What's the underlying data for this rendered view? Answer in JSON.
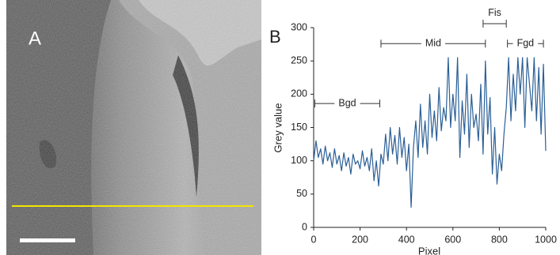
{
  "panel_a": {
    "label": "A"
  },
  "chart_data": {
    "type": "line",
    "panel_label": "B",
    "xlabel": "Pixel",
    "ylabel": "Grey value",
    "color": "#2b5f96",
    "x": [
      0,
      10,
      20,
      30,
      40,
      50,
      60,
      70,
      80,
      90,
      100,
      110,
      120,
      130,
      140,
      150,
      160,
      170,
      180,
      190,
      200,
      210,
      220,
      230,
      240,
      250,
      260,
      270,
      280,
      290,
      300,
      310,
      320,
      330,
      340,
      350,
      360,
      370,
      380,
      390,
      400,
      410,
      420,
      430,
      440,
      450,
      460,
      470,
      480,
      490,
      500,
      510,
      520,
      530,
      540,
      550,
      560,
      570,
      580,
      590,
      600,
      610,
      620,
      630,
      640,
      650,
      660,
      670,
      680,
      690,
      700,
      710,
      720,
      730,
      740,
      750,
      760,
      770,
      780,
      790,
      800,
      810,
      820,
      830,
      840,
      850,
      860,
      870,
      880,
      890,
      900,
      910,
      920,
      930,
      940,
      950,
      960,
      970,
      980,
      990,
      1000
    ],
    "values": [
      100,
      130,
      105,
      118,
      95,
      122,
      100,
      112,
      90,
      118,
      95,
      108,
      85,
      112,
      92,
      105,
      80,
      110,
      95,
      100,
      88,
      115,
      92,
      105,
      85,
      118,
      70,
      100,
      62,
      110,
      95,
      140,
      100,
      150,
      110,
      138,
      95,
      150,
      105,
      135,
      85,
      125,
      30,
      120,
      160,
      105,
      185,
      120,
      160,
      110,
      200,
      135,
      175,
      130,
      210,
      145,
      180,
      160,
      255,
      150,
      200,
      160,
      255,
      105,
      190,
      140,
      230,
      120,
      200,
      150,
      170,
      130,
      215,
      110,
      250,
      140,
      195,
      80,
      150,
      65,
      110,
      85,
      140,
      180,
      255,
      160,
      230,
      175,
      255,
      200,
      255,
      150,
      255,
      215,
      175,
      255,
      160,
      240,
      140,
      245,
      115
    ],
    "xlim": [
      0,
      1000
    ],
    "ylim": [
      0,
      300
    ],
    "xticks": [
      0,
      200,
      400,
      600,
      800,
      1000
    ],
    "yticks": [
      0,
      50,
      100,
      150,
      200,
      250,
      300
    ],
    "grid": false,
    "annotations": [
      {
        "text": "Bgd",
        "x": [
          5,
          285
        ],
        "y": 186,
        "text_position": "inline"
      },
      {
        "text": "Mid",
        "x": [
          290,
          740
        ],
        "y": 276,
        "text_position": "inline"
      },
      {
        "text": "Fis",
        "x": [
          730,
          830
        ],
        "y": 306,
        "text_position": "above"
      },
      {
        "text": "Fgd",
        "x": [
          835,
          990
        ],
        "y": 276,
        "text_position": "inline"
      }
    ]
  }
}
